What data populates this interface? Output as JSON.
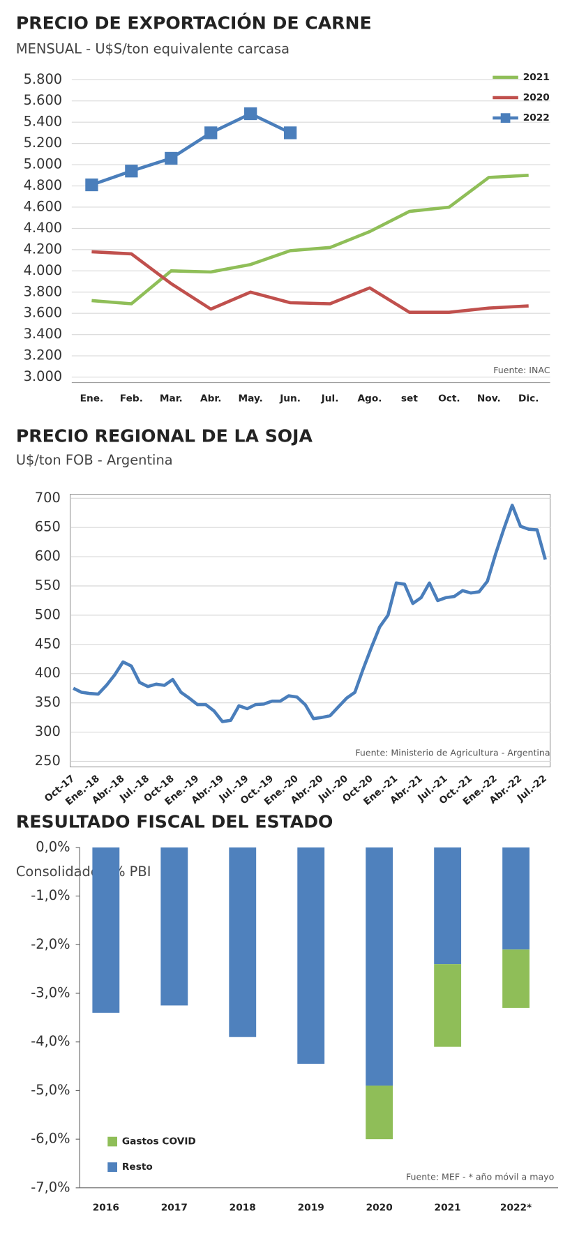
{
  "chart_data": [
    {
      "type": "line",
      "title": "PRECIO DE EXPORTACIÓN DE CARNE",
      "subtitle": "MENSUAL - U$S/ton equivalente carcasa",
      "source": "Fuente: INAC",
      "categories": [
        "Ene.",
        "Feb.",
        "Mar.",
        "Abr.",
        "May.",
        "Jun.",
        "Jul.",
        "Ago.",
        "set",
        "Oct.",
        "Nov.",
        "Dic."
      ],
      "series": [
        {
          "name": "2021",
          "color": "#8fbe58",
          "values": [
            3720,
            3690,
            4000,
            3990,
            4060,
            4190,
            4220,
            4370,
            4560,
            4600,
            4880,
            4900
          ]
        },
        {
          "name": "2020",
          "color": "#c0504d",
          "values": [
            4180,
            4160,
            3880,
            3640,
            3800,
            3700,
            3690,
            3840,
            3610,
            3610,
            3650,
            3670
          ]
        },
        {
          "name": "2022",
          "color": "#4a7ebb",
          "marker": "square",
          "values": [
            4810,
            4940,
            5060,
            5300,
            5480,
            5300,
            null,
            null,
            null,
            null,
            null,
            null
          ]
        }
      ],
      "ylim": [
        3000,
        5800
      ],
      "yticks": [
        {
          "value": 3000,
          "label": "3.000"
        },
        {
          "value": 3200,
          "label": "3.200"
        },
        {
          "value": 3400,
          "label": "3.400"
        },
        {
          "value": 3600,
          "label": "3.600"
        },
        {
          "value": 3800,
          "label": "3.800"
        },
        {
          "value": 4000,
          "label": "4.000"
        },
        {
          "value": 4200,
          "label": "4.200"
        },
        {
          "value": 4400,
          "label": "4.400"
        },
        {
          "value": 4600,
          "label": "4.600"
        },
        {
          "value": 4800,
          "label": "4.800"
        },
        {
          "value": 5000,
          "label": "5.000"
        },
        {
          "value": 5200,
          "label": "5.200"
        },
        {
          "value": 5400,
          "label": "5.400"
        },
        {
          "value": 5600,
          "label": "5.600"
        },
        {
          "value": 5800,
          "label": "5.800"
        }
      ],
      "grid": true,
      "legend": "top-right"
    },
    {
      "type": "line",
      "title": "PRECIO REGIONAL DE LA SOJA",
      "subtitle": "U$/ton FOB - Argentina",
      "source": "Fuente: Ministerio de Agricultura - Argentina",
      "categories": [
        "Oct-17",
        null,
        null,
        "Ene.-18",
        null,
        null,
        "Abr.-18",
        null,
        null,
        "Jul.-18",
        null,
        null,
        "Oct-18",
        null,
        null,
        "Ene.-19",
        null,
        null,
        "Abr.-19",
        null,
        null,
        "Jul.-19",
        null,
        null,
        "Oct.-19",
        null,
        null,
        "Ene.-20",
        null,
        null,
        "Abr.-20",
        null,
        null,
        "Jul.-20",
        null,
        null,
        "Oct-20",
        null,
        null,
        "Ene.-21",
        null,
        null,
        "Abr.-21",
        null,
        null,
        "Jul.-21",
        null,
        null,
        "Oct.-21",
        null,
        null,
        "Ene.-22",
        null,
        null,
        "Abr.-22",
        null,
        null,
        "Jul.-22"
      ],
      "series": [
        {
          "name": "Soja",
          "color": "#4a7ebb",
          "values": [
            375,
            368,
            366,
            365,
            380,
            398,
            420,
            413,
            385,
            378,
            382,
            380,
            390,
            368,
            358,
            347,
            347,
            336,
            318,
            320,
            345,
            340,
            347,
            348,
            353,
            353,
            362,
            360,
            347,
            323,
            325,
            328,
            343,
            358,
            368,
            408,
            445,
            480,
            500,
            555,
            553,
            520,
            530,
            555,
            525,
            530,
            532,
            542,
            538,
            540,
            558,
            605,
            648,
            688,
            652,
            647,
            646,
            595
          ]
        }
      ],
      "ylim": [
        250,
        700
      ],
      "yticks": [
        250,
        300,
        350,
        400,
        450,
        500,
        550,
        600,
        650,
        700
      ],
      "grid": true
    },
    {
      "type": "bar",
      "title": "RESULTADO FISCAL  DEL ESTADO",
      "subtitle": "Consolidado - % PBI",
      "source": "Fuente: MEF - * año móvil a mayo",
      "categories": [
        "2016",
        "2017",
        "2018",
        "2019",
        "2020",
        "2021",
        "2022*"
      ],
      "series": [
        {
          "name": "Resto",
          "color": "#4f81bd",
          "values": [
            -3.4,
            -3.25,
            -3.9,
            -4.45,
            -4.9,
            -2.4,
            -2.1
          ]
        },
        {
          "name": "Gastos COVID",
          "color": "#8fbe58",
          "values": [
            null,
            null,
            null,
            null,
            -1.1,
            -1.7,
            -1.2
          ]
        }
      ],
      "ylim": [
        -7,
        0
      ],
      "yticks": [
        {
          "value": -7,
          "label": "-7,0%"
        },
        {
          "value": -6,
          "label": "-6,0%"
        },
        {
          "value": -5,
          "label": "-5,0%"
        },
        {
          "value": -4,
          "label": "-4,0%"
        },
        {
          "value": -3,
          "label": "-3,0%"
        },
        {
          "value": -2,
          "label": "-2,0%"
        },
        {
          "value": -1,
          "label": "-1,0%"
        },
        {
          "value": 0,
          "label": "0,0%"
        }
      ],
      "grid": false,
      "stacked": true,
      "legend": "bottom-left"
    }
  ]
}
